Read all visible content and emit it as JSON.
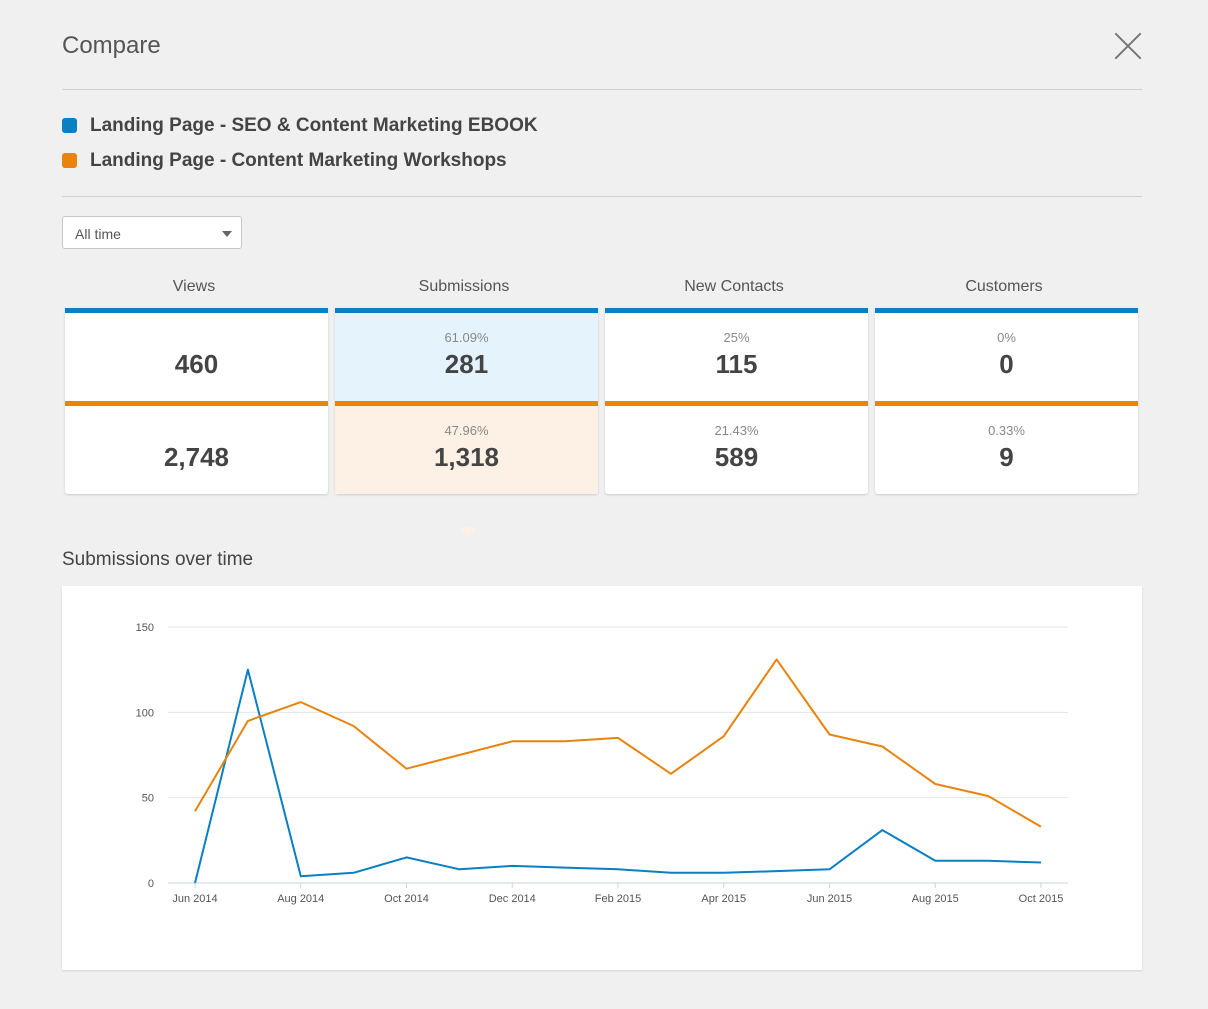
{
  "header": {
    "title": "Compare"
  },
  "legend": [
    {
      "label": "Landing Page - SEO & Content Marketing EBOOK",
      "color": "#0a7fc2"
    },
    {
      "label": "Landing Page - Content Marketing Workshops",
      "color": "#e8830c"
    }
  ],
  "filter": {
    "selected": "All time"
  },
  "metrics": {
    "views": {
      "label": "Views",
      "a_value": "460",
      "b_value": "2,748"
    },
    "submissions": {
      "label": "Submissions",
      "a_pct": "61.09%",
      "a_value": "281",
      "b_pct": "47.96%",
      "b_value": "1,318"
    },
    "new_contacts": {
      "label": "New Contacts",
      "a_pct": "25%",
      "a_value": "115",
      "b_pct": "21.43%",
      "b_value": "589"
    },
    "customers": {
      "label": "Customers",
      "a_pct": "0%",
      "a_value": "0",
      "b_pct": "0.33%",
      "b_value": "9"
    }
  },
  "chart_section": {
    "title": "Submissions over time"
  },
  "chart_data": {
    "type": "line",
    "title": "",
    "xlabel": "",
    "ylabel": "",
    "ylim": [
      0,
      150
    ],
    "yticks": [
      0,
      50,
      100,
      150
    ],
    "x": [
      "Jun 2014",
      "Jul 2014",
      "Aug 2014",
      "Sep 2014",
      "Oct 2014",
      "Nov 2014",
      "Dec 2014",
      "Jan 2015",
      "Feb 2015",
      "Mar 2015",
      "Apr 2015",
      "May 2015",
      "Jun 2015",
      "Jul 2015",
      "Aug 2015",
      "Sep 2015",
      "Oct 2015"
    ],
    "xtick_labels": [
      "Jun 2014",
      "",
      "Aug 2014",
      "",
      "Oct 2014",
      "",
      "Dec 2014",
      "",
      "Feb 2015",
      "",
      "Apr 2015",
      "",
      "Jun 2015",
      "",
      "Aug 2015",
      "",
      "Oct 2015"
    ],
    "grid": true,
    "series": [
      {
        "color": "#0a7fc2",
        "values": [
          0,
          125,
          4,
          6,
          15,
          8,
          10,
          9,
          8,
          6,
          6,
          7,
          8,
          31,
          13,
          13,
          12
        ]
      },
      {
        "color": "#e8830c",
        "values": [
          42,
          95,
          106,
          92,
          67,
          75,
          83,
          83,
          85,
          64,
          86,
          131,
          87,
          80,
          58,
          51,
          33
        ]
      }
    ]
  }
}
